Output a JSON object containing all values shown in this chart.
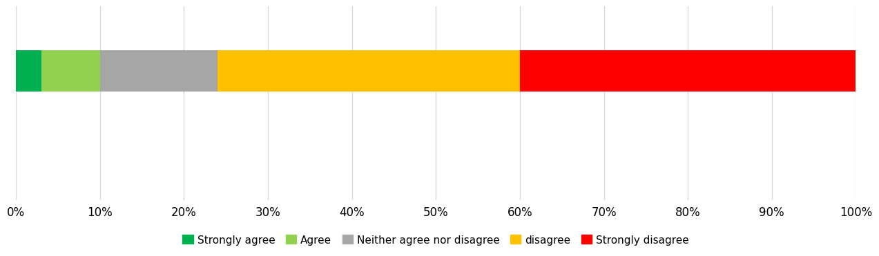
{
  "categories": [
    ""
  ],
  "segments": [
    {
      "label": "Strongly agree",
      "value": 3,
      "color": "#00b050"
    },
    {
      "label": "Agree",
      "value": 7,
      "color": "#92d050"
    },
    {
      "label": "Neither agree nor disagree",
      "value": 14,
      "color": "#a6a6a6"
    },
    {
      "label": "disagree",
      "value": 36,
      "color": "#ffc000"
    },
    {
      "label": "Strongly disagree",
      "value": 40,
      "color": "#ff0000"
    }
  ],
  "xlim": [
    0,
    100
  ],
  "xtick_labels": [
    "0%",
    "10%",
    "20%",
    "30%",
    "40%",
    "50%",
    "60%",
    "70%",
    "80%",
    "90%",
    "100%"
  ],
  "xtick_values": [
    0,
    10,
    20,
    30,
    40,
    50,
    60,
    70,
    80,
    90,
    100
  ],
  "grid_color": "#d9d9d9",
  "background_color": "#ffffff",
  "bar_height": 0.38,
  "legend_fontsize": 11,
  "tick_fontsize": 12
}
